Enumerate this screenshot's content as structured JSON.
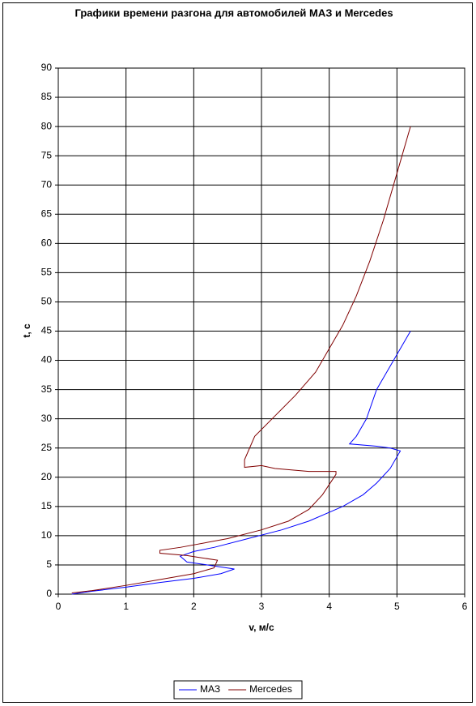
{
  "chart_data": {
    "type": "line",
    "title": "Графики времени разгона для автомобилей МАЗ и Mercedes",
    "x_label": "v, м/с",
    "y_label": "t, с",
    "xlim": [
      0,
      6
    ],
    "xticks": [
      0,
      1,
      2,
      3,
      4,
      5,
      6
    ],
    "ylim": [
      0,
      90
    ],
    "yticks": [
      0,
      5,
      10,
      15,
      20,
      25,
      30,
      35,
      40,
      45,
      50,
      55,
      60,
      65,
      70,
      75,
      80,
      85,
      90
    ],
    "grid": true,
    "legend": "bottom",
    "series": [
      {
        "name": "МАЗ",
        "color": "#0000ff",
        "x": [
          0.2,
          0.5,
          1,
          1.5,
          2,
          2.4,
          2.6,
          2.2,
          1.9,
          1.8,
          2,
          2.3,
          2.8,
          3.3,
          3.7,
          4,
          4.2,
          4.5,
          4.7,
          4.9,
          5.05,
          4.9,
          4.7,
          4.3,
          4.4,
          4.55,
          4.7,
          4.85,
          5,
          5.2
        ],
        "values": [
          0,
          0.5,
          1.2,
          2,
          2.7,
          3.5,
          4.3,
          5,
          5.5,
          6.5,
          7.3,
          8,
          9.5,
          11,
          12.5,
          14,
          15,
          17,
          19,
          21.5,
          24.5,
          25,
          25.3,
          25.7,
          27,
          30,
          35,
          38,
          41,
          45
        ]
      },
      {
        "name": "Mercedes",
        "color": "#800000",
        "x": [
          0.2,
          0.5,
          1,
          1.5,
          2,
          2.3,
          2.35,
          1.9,
          1.5,
          1.5,
          1.8,
          2.5,
          3,
          3.4,
          3.7,
          3.9,
          4.1,
          4.1,
          3.7,
          3.2,
          3,
          2.75,
          2.75,
          2.9,
          3.2,
          3.5,
          3.8,
          4,
          4.2,
          4.4,
          4.6,
          4.8,
          5,
          5.2
        ],
        "values": [
          0.2,
          0.6,
          1.5,
          2.5,
          3.5,
          4.5,
          5.8,
          6.6,
          7,
          7.5,
          8,
          9.5,
          11,
          12.5,
          14.5,
          17,
          20.5,
          21,
          21,
          21.5,
          22,
          21.7,
          23,
          27,
          30.5,
          34,
          38,
          42,
          46,
          51,
          57,
          64,
          72,
          80
        ]
      }
    ]
  }
}
